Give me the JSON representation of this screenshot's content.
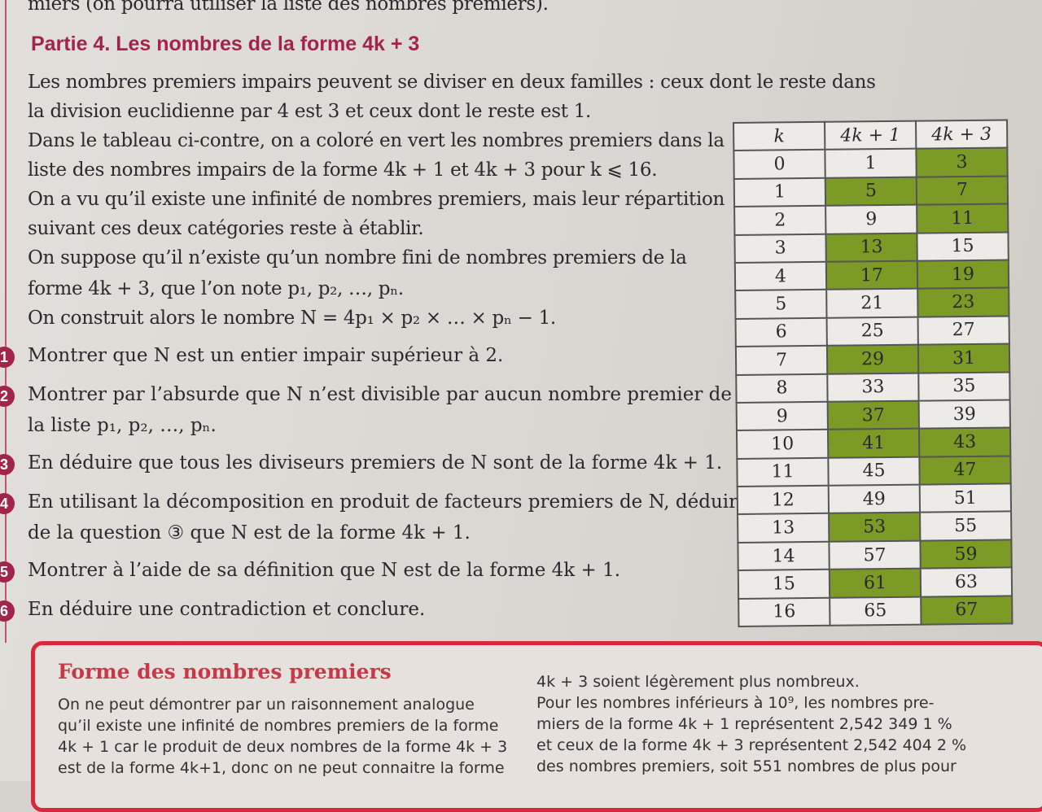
{
  "top_line": "miers (on pourra utiliser la liste des nombres premiers).",
  "title": "Partie 4. Les nombres de la forme 4k + 3",
  "intro": [
    "Les nombres premiers impairs peuvent se diviser en deux familles : ceux dont le reste dans",
    "la division euclidienne par 4 est 3 et ceux dont le reste est 1.",
    "Dans le tableau ci-contre, on a coloré en vert les nombres premiers dans la",
    "liste des nombres impairs de la forme 4k + 1 et 4k + 3 pour k ⩽ 16.",
    "On a vu qu’il existe une infinité de nombres premiers, mais leur répartition",
    "suivant ces deux catégories reste à établir.",
    "On suppose qu’il n’existe qu’un nombre fini de nombres premiers de la",
    "forme 4k + 3, que l’on note p₁, p₂, …, pₙ.",
    "On construit alors le nombre N = 4p₁ × p₂ × … × pₙ − 1."
  ],
  "questions": [
    {
      "n": "1",
      "lines": [
        "Montrer que N est un entier impair supérieur à 2."
      ]
    },
    {
      "n": "2",
      "lines": [
        "Montrer par l’absurde que N n’est divisible par aucun nombre premier de",
        "la liste p₁, p₂, …, pₙ."
      ]
    },
    {
      "n": "3",
      "lines": [
        "En déduire que tous les diviseurs premiers de N sont de la forme 4k + 1."
      ]
    },
    {
      "n": "4",
      "lines": [
        "En utilisant la décomposition en produit de facteurs premiers de N, déduire",
        "de la question ③ que N est de la forme 4k + 1."
      ]
    },
    {
      "n": "5",
      "lines": [
        "Montrer à l’aide de sa définition que N est de la forme 4k + 1."
      ]
    },
    {
      "n": "6",
      "lines": [
        "En déduire une contradiction et conclure."
      ]
    }
  ],
  "table": {
    "headers": [
      "k",
      "4k + 1",
      "4k + 3"
    ],
    "highlight_color": "#7b9a26",
    "rows": [
      [
        "0",
        "1",
        "3",
        false,
        true
      ],
      [
        "1",
        "5",
        "7",
        true,
        true
      ],
      [
        "2",
        "9",
        "11",
        false,
        true
      ],
      [
        "3",
        "13",
        "15",
        true,
        false
      ],
      [
        "4",
        "17",
        "19",
        true,
        true
      ],
      [
        "5",
        "21",
        "23",
        false,
        true
      ],
      [
        "6",
        "25",
        "27",
        false,
        false
      ],
      [
        "7",
        "29",
        "31",
        true,
        true
      ],
      [
        "8",
        "33",
        "35",
        false,
        false
      ],
      [
        "9",
        "37",
        "39",
        true,
        false
      ],
      [
        "10",
        "41",
        "43",
        true,
        true
      ],
      [
        "11",
        "45",
        "47",
        false,
        true
      ],
      [
        "12",
        "49",
        "51",
        false,
        false
      ],
      [
        "13",
        "53",
        "55",
        true,
        false
      ],
      [
        "14",
        "57",
        "59",
        false,
        true
      ],
      [
        "15",
        "61",
        "63",
        true,
        false
      ],
      [
        "16",
        "65",
        "67",
        false,
        true
      ]
    ]
  },
  "box": {
    "title": "Forme des nombres premiers",
    "left": [
      "On ne peut démontrer par un raisonnement analogue",
      "qu’il existe une infinité de nombres premiers de la forme",
      "4k + 1 car le produit de deux nombres de la forme 4k + 3",
      "est de la forme 4k+1, donc on ne peut connaitre la forme"
    ],
    "right": [
      "4k + 3 soient légèrement plus nombreux.",
      "Pour les nombres inférieurs à 10⁹, les nombres pre-",
      "miers de la forme 4k + 1 représentent 2,542 349 1 %",
      "et ceux de la forme 4k + 3 représentent 2,542 404 2 %",
      "des nombres premiers, soit 551 nombres de plus pour"
    ]
  }
}
